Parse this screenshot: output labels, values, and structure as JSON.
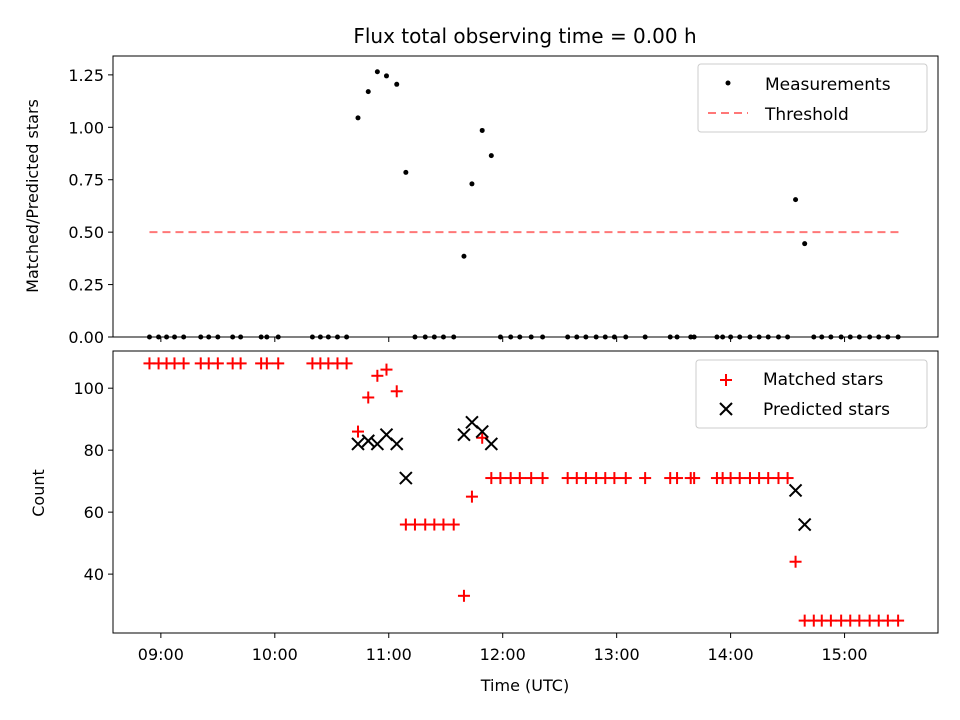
{
  "chart_data": [
    {
      "type": "scatter",
      "title": "Flux total observing time = 0.00 h",
      "xlabel": "",
      "ylabel": "Matched/Predicted stars",
      "xlim": [
        8.58,
        15.82
      ],
      "ylim": [
        0,
        1.34
      ],
      "yticks": [
        0,
        0.25,
        0.5,
        0.75,
        1.0,
        1.25
      ],
      "ytick_labels": [
        "0.00",
        "0.25",
        "0.50",
        "0.75",
        "1.00",
        "1.25"
      ],
      "legend": [
        "Measurements",
        "Threshold"
      ],
      "legend_position": "top-right",
      "series": [
        {
          "name": "Measurements",
          "marker": "dot",
          "color": "#000000",
          "x": [
            8.9,
            8.98,
            9.05,
            9.12,
            9.2,
            9.35,
            9.42,
            9.5,
            9.63,
            9.7,
            9.88,
            9.93,
            10.03,
            10.33,
            10.4,
            10.47,
            10.55,
            10.63,
            10.73,
            10.82,
            10.9,
            10.98,
            11.07,
            11.15,
            11.23,
            11.32,
            11.4,
            11.48,
            11.57,
            11.66,
            11.73,
            11.82,
            11.9,
            11.98,
            12.07,
            12.15,
            12.25,
            12.35,
            12.57,
            12.65,
            12.73,
            12.82,
            12.9,
            12.98,
            13.08,
            13.25,
            13.47,
            13.53,
            13.65,
            13.68,
            13.88,
            13.93,
            14.0,
            14.08,
            14.17,
            14.25,
            14.33,
            14.42,
            14.5,
            14.57,
            14.65,
            14.73,
            14.8,
            14.88,
            14.97,
            15.05,
            15.13,
            15.22,
            15.3,
            15.38,
            15.47
          ],
          "y": [
            0,
            0,
            0,
            0,
            0,
            0,
            0,
            0,
            0,
            0,
            0,
            0,
            0,
            0,
            0,
            0,
            0,
            0,
            1.045,
            1.17,
            1.265,
            1.245,
            1.205,
            0.785,
            0,
            0,
            0,
            0,
            0,
            0.385,
            0.73,
            0.985,
            0.865,
            0,
            0,
            0,
            0,
            0,
            0,
            0,
            0,
            0,
            0,
            0,
            0,
            0,
            0,
            0,
            0,
            0,
            0,
            0,
            0,
            0,
            0,
            0,
            0,
            0,
            0,
            0.655,
            0.445,
            0,
            0,
            0,
            0,
            0,
            0,
            0,
            0,
            0,
            0
          ]
        },
        {
          "name": "Threshold",
          "style": "dashed",
          "color": "#ff7777",
          "x": [
            8.9,
            15.5
          ],
          "y": [
            0.5,
            0.5
          ]
        }
      ]
    },
    {
      "type": "scatter",
      "title": "",
      "xlabel": "Time (UTC)",
      "ylabel": "Count",
      "xlim": [
        8.58,
        15.82
      ],
      "ylim": [
        21,
        112
      ],
      "xticks": [
        9,
        10,
        11,
        12,
        13,
        14,
        15
      ],
      "xtick_labels": [
        "09:00",
        "10:00",
        "11:00",
        "12:00",
        "13:00",
        "14:00",
        "15:00"
      ],
      "yticks": [
        40,
        60,
        80,
        100
      ],
      "ytick_labels": [
        "40",
        "60",
        "80",
        "100"
      ],
      "legend": [
        "Matched stars",
        "Predicted stars"
      ],
      "legend_position": "top-right",
      "series": [
        {
          "name": "Matched stars",
          "marker": "plus",
          "color": "#ff0000",
          "x": [
            8.9,
            8.98,
            9.05,
            9.12,
            9.2,
            9.35,
            9.42,
            9.5,
            9.63,
            9.7,
            9.88,
            9.93,
            10.03,
            10.33,
            10.4,
            10.47,
            10.55,
            10.63,
            10.73,
            10.82,
            10.9,
            10.98,
            11.07,
            11.15,
            11.23,
            11.32,
            11.4,
            11.48,
            11.57,
            11.66,
            11.73,
            11.82,
            11.9,
            11.98,
            12.07,
            12.15,
            12.25,
            12.35,
            12.57,
            12.65,
            12.73,
            12.82,
            12.9,
            12.98,
            13.08,
            13.25,
            13.47,
            13.53,
            13.65,
            13.68,
            13.88,
            13.93,
            14.0,
            14.08,
            14.17,
            14.25,
            14.33,
            14.42,
            14.5,
            14.57,
            14.65,
            14.73,
            14.8,
            14.88,
            14.97,
            15.05,
            15.13,
            15.22,
            15.3,
            15.38,
            15.47
          ],
          "y": [
            108,
            108,
            108,
            108,
            108,
            108,
            108,
            108,
            108,
            108,
            108,
            108,
            108,
            108,
            108,
            108,
            108,
            108,
            86,
            97,
            104,
            106,
            99,
            56,
            56,
            56,
            56,
            56,
            56,
            33,
            65,
            84,
            71,
            71,
            71,
            71,
            71,
            71,
            71,
            71,
            71,
            71,
            71,
            71,
            71,
            71,
            71,
            71,
            71,
            71,
            71,
            71,
            71,
            71,
            71,
            71,
            71,
            71,
            71,
            44,
            25,
            25,
            25,
            25,
            25,
            25,
            25,
            25,
            25,
            25,
            25
          ]
        },
        {
          "name": "Predicted stars",
          "marker": "x",
          "color": "#000000",
          "x": [
            10.73,
            10.82,
            10.9,
            10.98,
            11.07,
            11.15,
            11.66,
            11.73,
            11.82,
            11.9,
            14.57,
            14.65
          ],
          "y": [
            82,
            83,
            82,
            85,
            82,
            71,
            85,
            89,
            86,
            82,
            67,
            56
          ]
        }
      ]
    }
  ]
}
